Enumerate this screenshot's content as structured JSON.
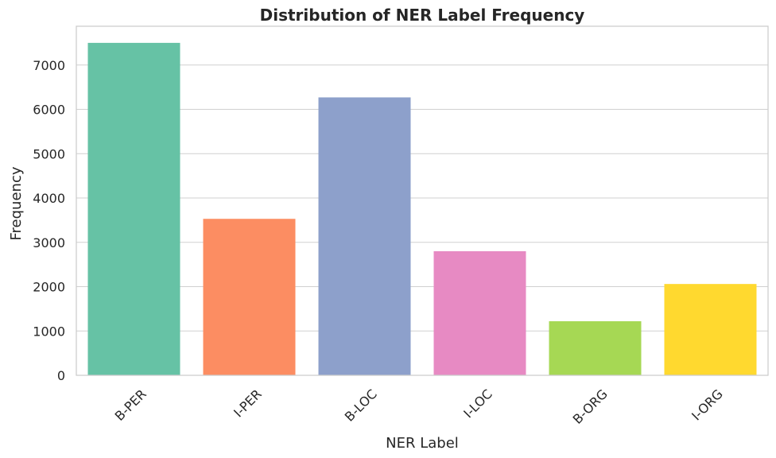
{
  "chart_data": {
    "type": "bar",
    "title": "Distribution of NER Label Frequency",
    "xlabel": "NER Label",
    "ylabel": "Frequency",
    "categories": [
      "B-PER",
      "I-PER",
      "B-LOC",
      "I-LOC",
      "B-ORG",
      "I-ORG"
    ],
    "values": [
      7500,
      3530,
      6270,
      2800,
      1220,
      2060
    ],
    "colors": [
      "#66c2a5",
      "#fc8d62",
      "#8da0cb",
      "#e78ac3",
      "#a6d854",
      "#ffd92f"
    ],
    "ylim": [
      0,
      7875
    ],
    "yticks": [
      0,
      1000,
      2000,
      3000,
      4000,
      5000,
      6000,
      7000
    ],
    "grid": "horizontal",
    "legend": "none"
  }
}
